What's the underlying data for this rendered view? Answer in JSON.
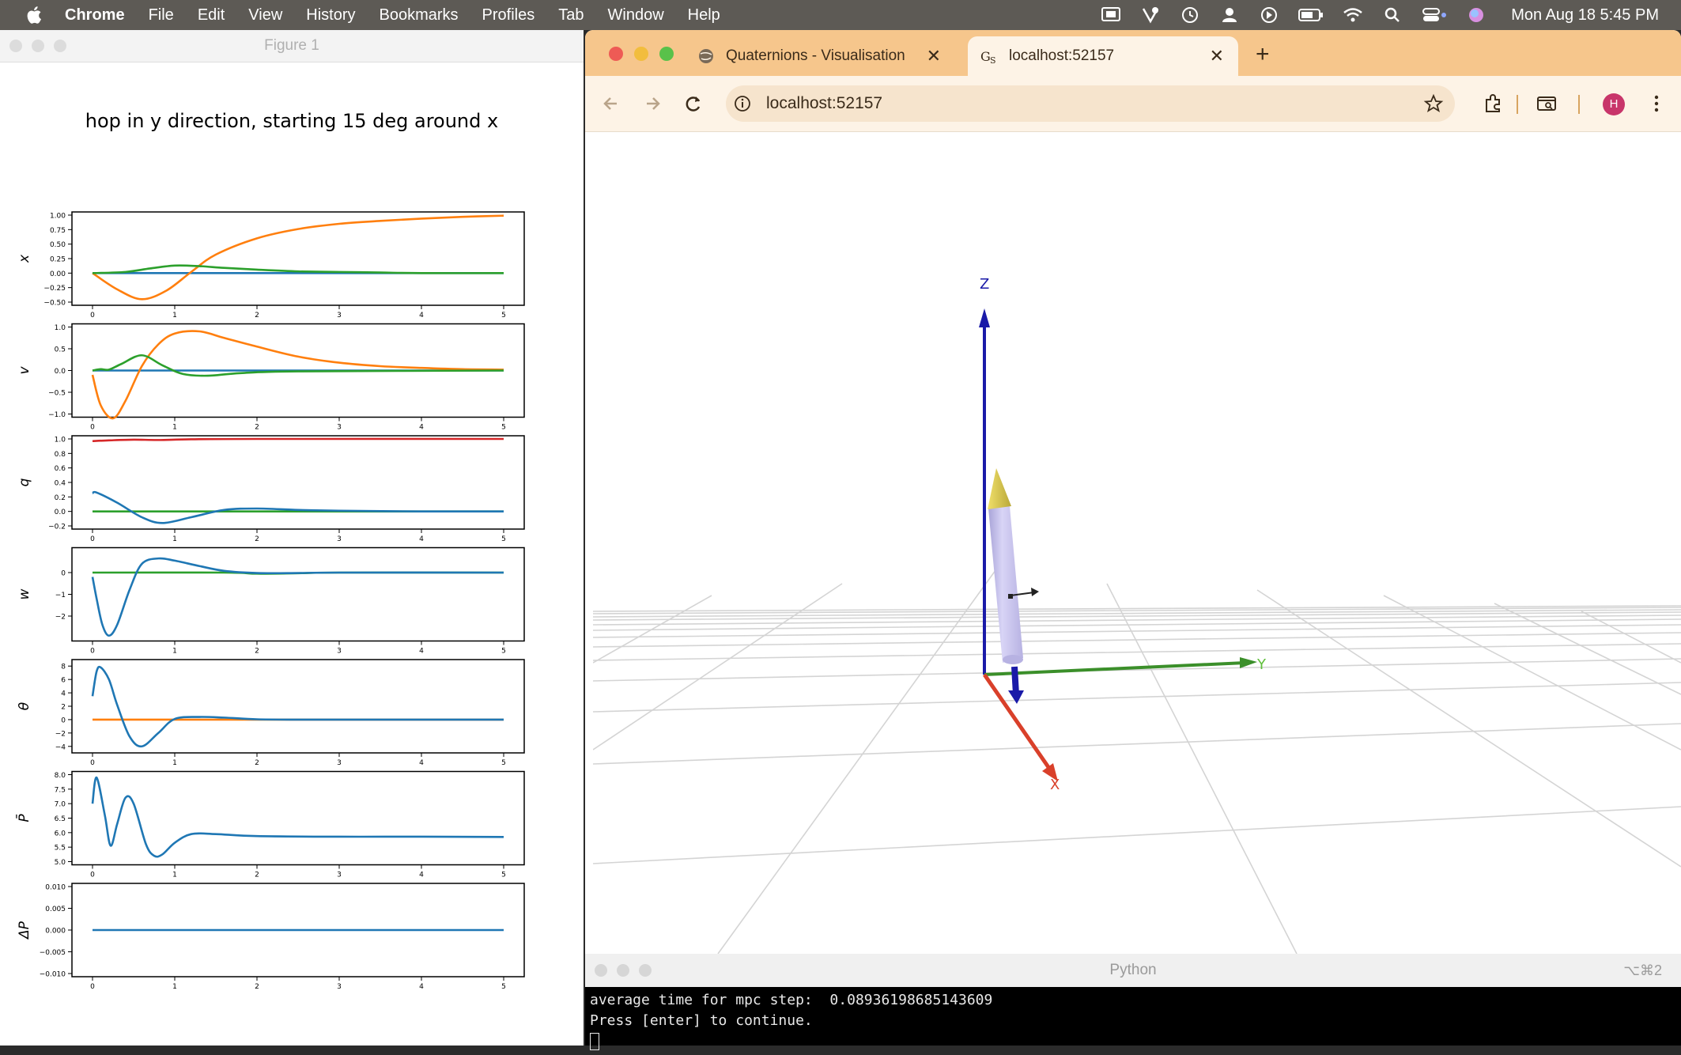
{
  "menubar": {
    "app_name": "Chrome",
    "items": [
      "File",
      "Edit",
      "View",
      "History",
      "Bookmarks",
      "Profiles",
      "Tab",
      "Window",
      "Help"
    ],
    "clock": "Mon Aug 18  5:45 PM"
  },
  "figure_window": {
    "title": "Figure 1",
    "suptitle": "hop in y direction, starting 15 deg around x"
  },
  "chart_data": [
    {
      "type": "line",
      "ylabel": "x",
      "xlim": [
        0,
        5
      ],
      "ylim": [
        -0.5,
        1.0
      ],
      "yticks": [
        "1.00",
        "0.75",
        "0.50",
        "0.25",
        "0.00",
        "−0.25",
        "−0.50"
      ],
      "xticks": [
        "0",
        "1",
        "2",
        "3",
        "4",
        "5"
      ],
      "series": [
        {
          "color": "#1f77b4",
          "x": [
            0,
            5
          ],
          "y": [
            0,
            0
          ]
        },
        {
          "color": "#ff7f0e",
          "x": [
            0,
            0.3,
            0.6,
            0.9,
            1.2,
            1.5,
            2,
            2.5,
            3,
            3.5,
            4,
            4.5,
            5
          ],
          "y": [
            0,
            -0.28,
            -0.45,
            -0.3,
            0.02,
            0.32,
            0.6,
            0.76,
            0.85,
            0.9,
            0.94,
            0.97,
            0.99
          ]
        },
        {
          "color": "#2ca02c",
          "x": [
            0,
            0.4,
            0.7,
            1,
            1.3,
            1.6,
            2,
            2.5,
            3,
            3.5,
            4,
            5
          ],
          "y": [
            0,
            0.02,
            0.08,
            0.13,
            0.12,
            0.09,
            0.06,
            0.03,
            0.02,
            0.01,
            0.0,
            0.0
          ]
        }
      ]
    },
    {
      "type": "line",
      "ylabel": "v",
      "xlim": [
        0,
        5
      ],
      "ylim": [
        -1.0,
        1.0
      ],
      "yticks": [
        "1.0",
        "0.5",
        "0.0",
        "−0.5",
        "−1.0"
      ],
      "xticks": [
        "0",
        "1",
        "2",
        "3",
        "4",
        "5"
      ],
      "series": [
        {
          "color": "#1f77b4",
          "x": [
            0,
            5
          ],
          "y": [
            0,
            0
          ]
        },
        {
          "color": "#ff7f0e",
          "x": [
            0,
            0.1,
            0.25,
            0.4,
            0.6,
            0.8,
            1.0,
            1.3,
            1.6,
            2,
            2.5,
            3,
            3.5,
            4,
            4.5,
            5
          ],
          "y": [
            -0.1,
            -0.8,
            -1.1,
            -0.7,
            0.1,
            0.6,
            0.85,
            0.9,
            0.75,
            0.55,
            0.32,
            0.18,
            0.1,
            0.06,
            0.03,
            0.02
          ]
        },
        {
          "color": "#2ca02c",
          "x": [
            0,
            0.1,
            0.2,
            0.35,
            0.6,
            0.85,
            1.1,
            1.4,
            1.8,
            2.5,
            5
          ],
          "y": [
            0,
            0.03,
            0.02,
            0.15,
            0.35,
            0.12,
            -0.08,
            -0.12,
            -0.06,
            -0.02,
            0
          ]
        }
      ]
    },
    {
      "type": "line",
      "ylabel": "q",
      "xlim": [
        0,
        5
      ],
      "ylim": [
        -0.2,
        1.0
      ],
      "yticks": [
        "1.0",
        "0.8",
        "0.6",
        "0.4",
        "0.2",
        "0.0",
        "−0.2"
      ],
      "xticks": [
        "0",
        "1",
        "2",
        "3",
        "4",
        "5"
      ],
      "series": [
        {
          "color": "#d62728",
          "x": [
            0,
            0.2,
            0.5,
            0.8,
            1.2,
            2,
            5
          ],
          "y": [
            0.97,
            0.98,
            0.99,
            0.985,
            0.995,
            1.0,
            1.0
          ]
        },
        {
          "color": "#2ca02c",
          "x": [
            0,
            5
          ],
          "y": [
            0,
            0
          ]
        },
        {
          "color": "#1f77b4",
          "x": [
            0,
            0.05,
            0.3,
            0.6,
            0.85,
            1.2,
            1.6,
            2.0,
            2.5,
            3,
            4,
            5
          ],
          "y": [
            0.25,
            0.26,
            0.12,
            -0.08,
            -0.16,
            -0.08,
            0.02,
            0.04,
            0.02,
            0.01,
            0,
            0
          ]
        }
      ]
    },
    {
      "type": "line",
      "ylabel": "w",
      "xlim": [
        0,
        5
      ],
      "ylim": [
        -3.0,
        1.0
      ],
      "yticks": [
        "0",
        "−1",
        "−2"
      ],
      "ytick_values": [
        0,
        -1,
        -2
      ],
      "xticks": [
        "0",
        "1",
        "2",
        "3",
        "4",
        "5"
      ],
      "series": [
        {
          "color": "#2ca02c",
          "x": [
            0,
            1.6,
            2.0,
            2.5,
            3,
            5
          ],
          "y": [
            0,
            0.0,
            -0.05,
            -0.03,
            0,
            0
          ]
        },
        {
          "color": "#1f77b4",
          "x": [
            0,
            0.05,
            0.12,
            0.2,
            0.3,
            0.45,
            0.6,
            0.8,
            1.0,
            1.3,
            1.6,
            2.0,
            2.5,
            3,
            5
          ],
          "y": [
            -0.2,
            -1.2,
            -2.4,
            -2.9,
            -2.4,
            -0.8,
            0.4,
            0.65,
            0.55,
            0.3,
            0.08,
            -0.02,
            -0.02,
            0,
            0
          ]
        }
      ]
    },
    {
      "type": "line",
      "ylabel": "θ",
      "xlim": [
        0,
        5
      ],
      "ylim": [
        -4.5,
        8.5
      ],
      "yticks": [
        "8",
        "6",
        "4",
        "2",
        "0",
        "−2",
        "−4"
      ],
      "ytick_values": [
        8,
        6,
        4,
        2,
        0,
        -2,
        -4
      ],
      "xticks": [
        "0",
        "1",
        "2",
        "3",
        "4",
        "5"
      ],
      "series": [
        {
          "color": "#ff7f0e",
          "x": [
            0,
            5
          ],
          "y": [
            0,
            0
          ]
        },
        {
          "color": "#1f77b4",
          "x": [
            0,
            0.05,
            0.1,
            0.2,
            0.3,
            0.45,
            0.6,
            0.8,
            1.0,
            1.3,
            1.6,
            2.0,
            2.5,
            3,
            5
          ],
          "y": [
            3.5,
            7.2,
            7.8,
            6.0,
            2.2,
            -2.5,
            -4.0,
            -2.0,
            0.1,
            0.4,
            0.3,
            0.05,
            0,
            0,
            0
          ]
        }
      ]
    },
    {
      "type": "line",
      "ylabel": "P̄",
      "xlim": [
        0,
        5
      ],
      "ylim": [
        5.0,
        8.0
      ],
      "yticks": [
        "8.0",
        "7.5",
        "7.0",
        "6.5",
        "6.0",
        "5.5",
        "5.0"
      ],
      "xticks": [
        "0",
        "1",
        "2",
        "3",
        "4",
        "5"
      ],
      "series": [
        {
          "color": "#1f77b4",
          "x": [
            0,
            0.05,
            0.15,
            0.22,
            0.3,
            0.4,
            0.5,
            0.65,
            0.75,
            0.85,
            1.0,
            1.2,
            1.5,
            2,
            3,
            4,
            5
          ],
          "y": [
            7.0,
            7.9,
            6.6,
            5.55,
            6.3,
            7.2,
            7.0,
            5.6,
            5.2,
            5.25,
            5.65,
            5.95,
            5.95,
            5.88,
            5.86,
            5.86,
            5.85
          ]
        }
      ]
    },
    {
      "type": "line",
      "ylabel": "ΔP",
      "xlim": [
        0,
        5
      ],
      "ylim": [
        -0.01,
        0.01
      ],
      "yticks": [
        "0.010",
        "0.005",
        "0.000",
        "−0.005",
        "−0.010"
      ],
      "xticks": [
        "0",
        "1",
        "2",
        "3",
        "4",
        "5"
      ],
      "series": [
        {
          "color": "#1f77b4",
          "x": [
            0,
            5
          ],
          "y": [
            0,
            0
          ]
        }
      ]
    }
  ],
  "chrome": {
    "tabs": [
      {
        "label": "Quaternions - Visualisation",
        "active": false
      },
      {
        "label": "localhost:52157",
        "active": true
      }
    ],
    "url": "localhost:52157",
    "avatar_initial": "H"
  },
  "scene": {
    "axis_labels": {
      "z": "Z",
      "x": "X",
      "y": "Y"
    },
    "colors": {
      "z_axis": "#1a1aa8",
      "x_axis": "#d9402a",
      "y_axis": "#3b8f2a",
      "rocket_body": "#c8c4ec",
      "rocket_nose": "#d8c84a"
    }
  },
  "python_window": {
    "title": "Python",
    "shortcut": "⌥⌘2",
    "lines": [
      "average time for mpc step:  0.08936198685143609",
      "Press [enter] to continue."
    ]
  }
}
